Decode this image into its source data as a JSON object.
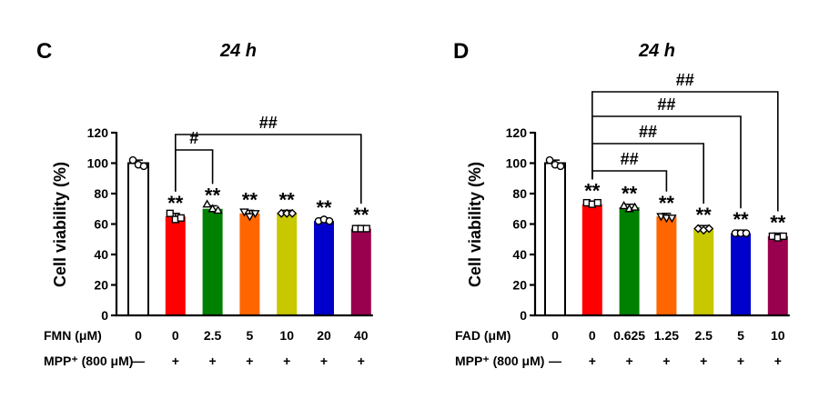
{
  "chart_data": [
    {
      "type": "bar",
      "panel_label": "C",
      "title": "24 h",
      "ylabel": "Cell viability (%)",
      "ylim": [
        0,
        120
      ],
      "yticks": [
        "0",
        "20",
        "40",
        "60",
        "80",
        "100",
        "120"
      ],
      "row1_label": "FMN (μM)",
      "row2_label": "MPP⁺ (800 μM)",
      "categories": [
        "0",
        "0",
        "2.5",
        "5",
        "10",
        "20",
        "40"
      ],
      "mpp_row": [
        "—",
        "+",
        "+",
        "+",
        "+",
        "+",
        "+"
      ],
      "values": [
        100,
        65,
        70,
        67,
        67,
        62,
        57
      ],
      "points": [
        [
          102,
          99,
          98
        ],
        [
          67,
          63,
          64
        ],
        [
          73,
          70,
          69
        ],
        [
          68,
          65,
          67
        ],
        [
          67,
          67,
          67
        ],
        [
          62,
          63,
          62
        ],
        [
          57,
          57,
          57
        ]
      ],
      "markers": [
        "circle",
        "square",
        "triangle",
        "triangle-down",
        "diamond",
        "circle",
        "square"
      ],
      "colors": [
        "#ffffff",
        "#ff0000",
        "#008000",
        "#ff6600",
        "#c8c800",
        "#0000cc",
        "#99004d"
      ],
      "stars": [
        "",
        "**",
        "**",
        "**",
        "**",
        "**",
        "**"
      ],
      "comparisons": [
        {
          "from": 1,
          "to": 2,
          "label": "#"
        },
        {
          "from": 1,
          "to": 6,
          "label": "##"
        }
      ]
    },
    {
      "type": "bar",
      "panel_label": "D",
      "title": "24 h",
      "ylabel": "Cell viability (%)",
      "ylim": [
        0,
        120
      ],
      "yticks": [
        "0",
        "20",
        "40",
        "60",
        "80",
        "100",
        "120"
      ],
      "row1_label": "FAD (μM)",
      "row2_label": "MPP⁺ (800 μM)",
      "categories": [
        "0",
        "0",
        "0.625",
        "1.25",
        "2.5",
        "5",
        "10"
      ],
      "mpp_row": [
        "—",
        "+",
        "+",
        "+",
        "+",
        "+",
        "+"
      ],
      "values": [
        100,
        73,
        71,
        65,
        57,
        54,
        52
      ],
      "points": [
        [
          102,
          99,
          98
        ],
        [
          74,
          73,
          74
        ],
        [
          72,
          70,
          71
        ],
        [
          65,
          64,
          64
        ],
        [
          57,
          56,
          57
        ],
        [
          54,
          54,
          54
        ],
        [
          52,
          51,
          52
        ]
      ],
      "markers": [
        "circle",
        "square",
        "triangle",
        "triangle-down",
        "diamond",
        "circle",
        "square"
      ],
      "colors": [
        "#ffffff",
        "#ff0000",
        "#008000",
        "#ff6600",
        "#c8c800",
        "#0000cc",
        "#99004d"
      ],
      "stars": [
        "",
        "**",
        "**",
        "**",
        "**",
        "**",
        "**"
      ],
      "comparisons": [
        {
          "from": 1,
          "to": 3,
          "label": "##"
        },
        {
          "from": 1,
          "to": 4,
          "label": "##"
        },
        {
          "from": 1,
          "to": 5,
          "label": "##"
        },
        {
          "from": 1,
          "to": 6,
          "label": "##"
        }
      ]
    }
  ]
}
